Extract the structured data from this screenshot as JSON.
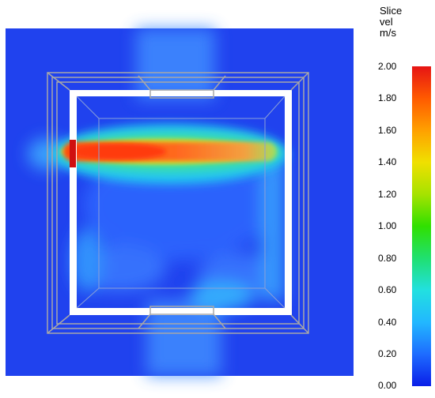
{
  "colorbar": {
    "title_lines": [
      "Slice",
      "vel",
      "m/s"
    ],
    "ticks": [
      "2.00",
      "1.80",
      "1.60",
      "1.40",
      "1.20",
      "1.00",
      "0.80",
      "0.60",
      "0.40",
      "0.20",
      "0.00"
    ],
    "min": 0.0,
    "max": 2.0,
    "colors": [
      "#0a1ee8",
      "#1e6cff",
      "#22b8ff",
      "#22e0e0",
      "#20e070",
      "#30e000",
      "#a6e200",
      "#f0e000",
      "#ffa000",
      "#ff5a00",
      "#e61414"
    ]
  },
  "scene": {
    "description_colors": {
      "background_field": "#2040ee",
      "jet_core": "#f05a20",
      "jet_edge": "#20d8e0",
      "wall": "#ffffff",
      "frame": "#a8a8a8",
      "inlet": "#d01010"
    }
  }
}
